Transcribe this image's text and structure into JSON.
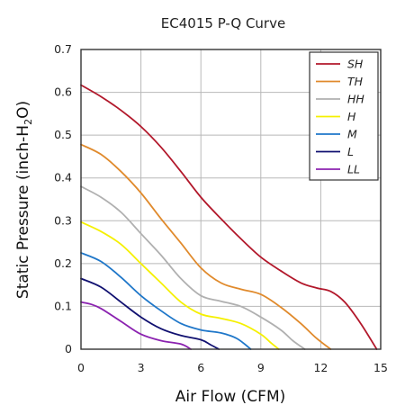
{
  "chart_data": {
    "type": "line",
    "title": "EC4015 P-Q Curve",
    "xlabel": "Air Flow (CFM)",
    "ylabel": {
      "main": "Static Pressure (inch-H",
      "sub": "2",
      "end": "O)"
    },
    "xlim": [
      0,
      15
    ],
    "ylim": [
      0,
      0.7
    ],
    "xticks": [
      "0",
      "3",
      "6",
      "9",
      "12",
      "15"
    ],
    "yticks": [
      "0",
      "0.1",
      "0.2",
      "0.3",
      "0.4",
      "0.5",
      "0.6",
      "0.7"
    ],
    "grid": true,
    "legend_position": "top-right",
    "series": [
      {
        "name": "SH",
        "color": "#b2182b",
        "x": [
          0,
          1,
          2,
          3,
          4,
          5,
          6,
          7,
          8,
          9,
          10,
          11,
          11.8,
          12.5,
          13.2,
          14,
          14.8
        ],
        "y": [
          0.617,
          0.59,
          0.558,
          0.52,
          0.472,
          0.415,
          0.355,
          0.305,
          0.258,
          0.215,
          0.183,
          0.155,
          0.143,
          0.135,
          0.11,
          0.06,
          0
        ]
      },
      {
        "name": "TH",
        "color": "#e08a2c",
        "x": [
          0,
          1,
          2,
          3,
          4,
          5,
          6,
          7,
          8,
          9,
          10,
          11,
          11.8,
          12.5
        ],
        "y": [
          0.478,
          0.455,
          0.415,
          0.365,
          0.305,
          0.248,
          0.19,
          0.155,
          0.14,
          0.128,
          0.098,
          0.06,
          0.025,
          0
        ]
      },
      {
        "name": "HH",
        "color": "#b0b0b0",
        "x": [
          0,
          1,
          2,
          3,
          4,
          5,
          6,
          7,
          8,
          9,
          10,
          10.6,
          11.2
        ],
        "y": [
          0.38,
          0.355,
          0.32,
          0.27,
          0.22,
          0.165,
          0.125,
          0.112,
          0.1,
          0.075,
          0.045,
          0.02,
          0
        ]
      },
      {
        "name": "H",
        "color": "#f5f000",
        "x": [
          0,
          1,
          2,
          3,
          4,
          5,
          6,
          7,
          8,
          9,
          9.5,
          9.9
        ],
        "y": [
          0.297,
          0.275,
          0.245,
          0.2,
          0.155,
          0.11,
          0.082,
          0.072,
          0.06,
          0.035,
          0.015,
          0
        ]
      },
      {
        "name": "M",
        "color": "#1f77c9",
        "x": [
          0,
          1,
          2,
          3,
          4,
          5,
          6,
          7,
          7.8,
          8.5
        ],
        "y": [
          0.225,
          0.205,
          0.168,
          0.125,
          0.09,
          0.06,
          0.045,
          0.038,
          0.025,
          0
        ]
      },
      {
        "name": "L",
        "color": "#101070",
        "x": [
          0,
          1,
          2,
          3,
          4,
          5,
          6,
          6.5,
          6.9
        ],
        "y": [
          0.165,
          0.145,
          0.11,
          0.075,
          0.048,
          0.032,
          0.022,
          0.01,
          0
        ]
      },
      {
        "name": "LL",
        "color": "#8b22b0",
        "x": [
          0,
          0.5,
          1,
          2,
          3,
          4,
          5,
          5.5
        ],
        "y": [
          0.11,
          0.105,
          0.095,
          0.065,
          0.035,
          0.02,
          0.012,
          0
        ]
      }
    ]
  }
}
